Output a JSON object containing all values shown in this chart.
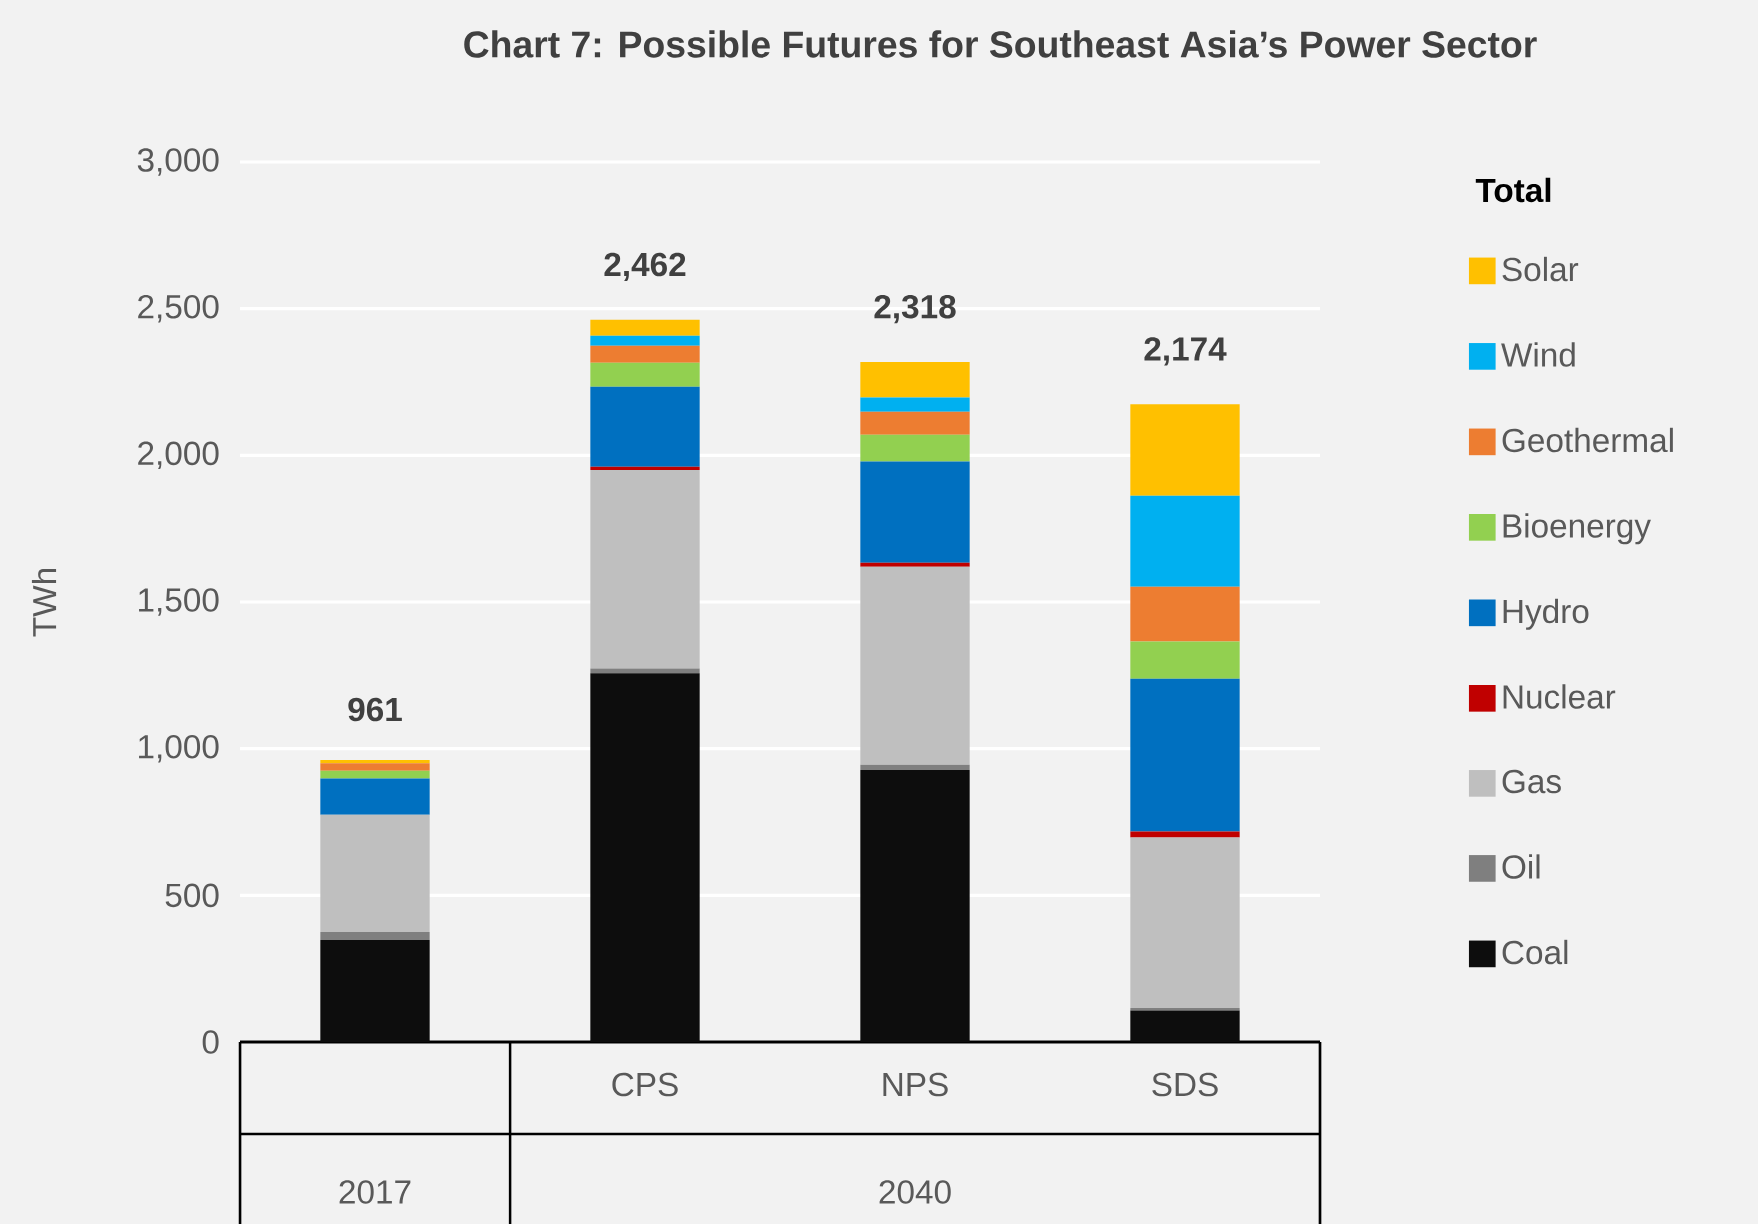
{
  "chart_data": {
    "type": "bar",
    "stacked": true,
    "title": "Chart 7: Possible Futures for Southeast Asia’s Power Sector",
    "ylabel": "TWh",
    "categories": [
      null,
      "CPS",
      "NPS",
      "SDS"
    ],
    "annotations": [
      "2017",
      "2040"
    ],
    "legend_title": "Total",
    "legend": "right",
    "grid": "y",
    "ylim": [
      0,
      3000
    ],
    "yticks": [
      0,
      500,
      {
        "value": 1000,
        "label": "1,000"
      },
      {
        "value": 1500,
        "label": "1,500"
      },
      {
        "value": 2000,
        "label": "2,000"
      },
      {
        "value": 2500,
        "label": "2,500"
      },
      {
        "value": 3000,
        "label": "3,000"
      }
    ],
    "totals": [
      "961",
      "2,462",
      "2,318",
      "2,174"
    ],
    "series": [
      {
        "name": "Coal",
        "color": "#0d0d0d",
        "values": [
          348,
          1257,
          927,
          107
        ]
      },
      {
        "name": "Oil",
        "color": "#7f7f7f",
        "values": [
          27,
          16,
          18,
          9
        ]
      },
      {
        "name": "Gas",
        "color": "#bfbfbf",
        "values": [
          400,
          677,
          675,
          581
        ]
      },
      {
        "name": "Nuclear",
        "color": "#c00000",
        "values": [
          0,
          11,
          14,
          21
        ]
      },
      {
        "name": "Hydro",
        "color": "#0070c0",
        "values": [
          123,
          273,
          345,
          520
        ]
      },
      {
        "name": "Bioenergy",
        "color": "#92d050",
        "values": [
          27,
          82,
          91,
          127
        ]
      },
      {
        "name": "Geothermal",
        "color": "#ed7d31",
        "values": [
          25,
          58,
          79,
          187
        ]
      },
      {
        "name": "Wind",
        "color": "#00b0f0",
        "values": [
          null,
          34,
          48,
          310
        ]
      },
      {
        "name": "Solar",
        "color": "#ffc000",
        "values": [
          11,
          54,
          121,
          312
        ]
      }
    ]
  }
}
